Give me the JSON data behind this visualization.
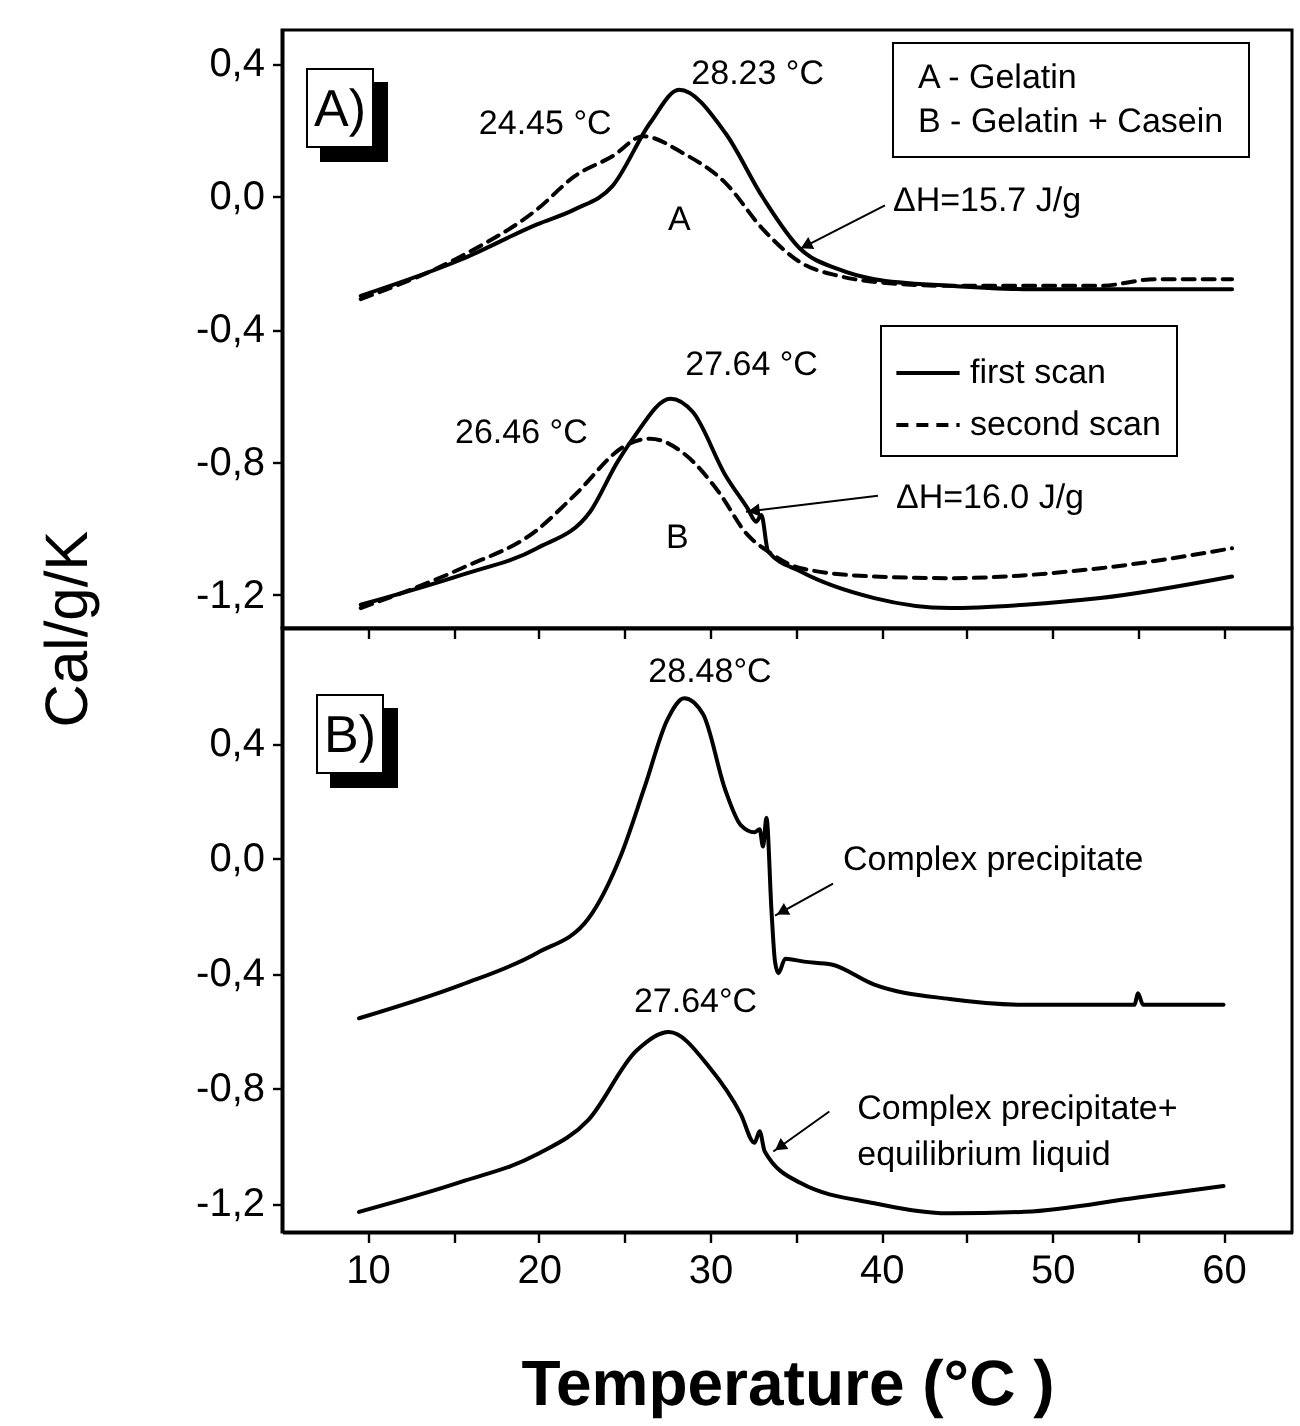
{
  "chart_data": [
    {
      "type": "line",
      "xlim": [
        5,
        64
      ],
      "ylim": [
        -1.3,
        0.5
      ],
      "tick_labels": "y",
      "legend": "right",
      "ylabel": "Cal/g/K",
      "xticks": [
        10,
        {
          "value": 15,
          "label": null
        },
        20,
        {
          "value": 25,
          "label": null
        },
        30,
        {
          "value": 35,
          "label": null
        },
        40,
        {
          "value": 45,
          "label": null
        },
        50,
        {
          "value": 55,
          "label": null
        },
        60
      ],
      "yticks": [
        {
          "value": 0.4,
          "label": "0,4"
        },
        {
          "value": 0,
          "label": "0,0"
        },
        {
          "value": -0.4,
          "label": "-0,4"
        },
        {
          "value": -0.8,
          "label": "-0,8"
        },
        {
          "value": -1.2,
          "label": "-1,2"
        }
      ],
      "series": [
        {
          "name": "first scan",
          "color": "#000000",
          "line_style": "solid",
          "x": [
            9.6,
            15.5,
            19.9,
            22.1,
            24.3,
            26.5,
            28.2,
            30.9,
            33.1,
            35.3,
            37.5,
            39.6,
            44.0,
            48.4,
            52.8,
            60.5
          ],
          "values": [
            -0.3,
            -0.19,
            -0.085,
            -0.04,
            0.03,
            0.22,
            0.32,
            0.19,
            -0.005,
            -0.16,
            -0.22,
            -0.25,
            -0.27,
            -0.28,
            -0.28,
            -0.28
          ]
        },
        {
          "name": "second scan",
          "color": "#000000",
          "line_style": "dashed",
          "x": [
            9.6,
            15.5,
            19.9,
            22.1,
            24.3,
            26.1,
            28.4,
            30.9,
            33.1,
            35.3,
            37.5,
            40.0,
            44.0,
            52.8,
            56.0,
            60.5
          ],
          "values": [
            -0.31,
            -0.18,
            -0.04,
            0.06,
            0.12,
            0.18,
            0.13,
            0.04,
            -0.1,
            -0.2,
            -0.24,
            -0.26,
            -0.27,
            -0.27,
            -0.25,
            -0.25
          ]
        },
        {
          "color": "#000000",
          "line_style": "solid",
          "x": [
            9.6,
            15.5,
            19.9,
            23.0,
            24.6,
            25.5,
            27.7,
            29.0,
            30.9,
            32.2,
            32.7,
            33.0,
            33.4,
            35.3,
            39.6,
            44.0,
            48.4,
            52.8,
            60.5
          ],
          "values": [
            -1.23,
            -1.14,
            -1.06,
            -0.95,
            -0.8,
            -0.73,
            -0.61,
            -0.65,
            -0.84,
            -0.94,
            -0.98,
            -0.96,
            -1.07,
            -1.13,
            -1.21,
            -1.24,
            -1.23,
            -1.21,
            -1.145
          ]
        },
        {
          "color": "#000000",
          "line_style": "dashed",
          "x": [
            9.6,
            15.5,
            19.9,
            22.1,
            25.1,
            26.5,
            28.6,
            30.5,
            32.2,
            33.4,
            35.3,
            39.6,
            44.0,
            52.8,
            60.5
          ],
          "values": [
            -1.24,
            -1.12,
            -1.005,
            -0.9,
            -0.75,
            -0.73,
            -0.78,
            -0.89,
            -1.02,
            -1.07,
            -1.12,
            -1.145,
            -1.15,
            -1.12,
            -1.06
          ]
        }
      ],
      "annotations": [
        {
          "text": "28.23 °C",
          "x": 28.23,
          "y": 0.32
        },
        {
          "text": "24.45 °C",
          "x": 26.1,
          "y": 0.18
        },
        {
          "text": "ΔH=15.7 J/g",
          "x": 35.2,
          "y": -0.16
        },
        {
          "text": "27.64 °C",
          "x": 27.64,
          "y": -0.61
        },
        {
          "text": "26.46 °C",
          "x": 26.46,
          "y": -0.73
        },
        {
          "text": "ΔH=16.0 J/g",
          "x": 32.1,
          "y": -0.95
        },
        "A)",
        "A - Gelatin",
        "B - Gelatin + Casein",
        "A",
        "B"
      ]
    },
    {
      "type": "line",
      "xlim": [
        5,
        64
      ],
      "ylim": [
        -1.3,
        0.8
      ],
      "xlabel": "Temperature (°C )",
      "xticks": [
        10,
        {
          "value": 15,
          "label": null
        },
        20,
        {
          "value": 25,
          "label": null
        },
        30,
        {
          "value": 35,
          "label": null
        },
        40,
        {
          "value": 45,
          "label": null
        },
        50,
        {
          "value": 55,
          "label": null
        },
        60
      ],
      "yticks": [
        {
          "value": 0.4,
          "label": "0,4"
        },
        {
          "value": 0,
          "label": "0,0"
        },
        {
          "value": -0.4,
          "label": "-0,4"
        },
        {
          "value": -0.8,
          "label": "-0,8"
        },
        {
          "value": -1.2,
          "label": "-1,2"
        }
      ],
      "series": [
        {
          "color": "#000000",
          "line_style": "solid",
          "x": [
            9.5,
            15.5,
            19.9,
            22.9,
            24.8,
            26.2,
            27.5,
            28.5,
            29.6,
            30.9,
            31.8,
            32.6,
            32.9,
            33.1,
            33.3,
            33.6,
            33.8,
            34.0,
            34.4,
            35.5,
            37.1,
            39.6,
            44.0,
            48.4,
            54.8,
            55.0,
            55.3,
            60.0
          ],
          "values": [
            -0.557,
            -0.44,
            -0.33,
            -0.21,
            0.01,
            0.25,
            0.48,
            0.556,
            0.5,
            0.236,
            0.115,
            0.09,
            0.1,
            0.04,
            0.14,
            -0.19,
            -0.36,
            -0.4,
            -0.35,
            -0.36,
            -0.37,
            -0.44,
            -0.49,
            -0.51,
            -0.51,
            -0.47,
            -0.51,
            -0.51
          ]
        },
        {
          "color": "#000000",
          "line_style": "solid",
          "x": [
            9.5,
            15.5,
            19.9,
            22.9,
            25.7,
            27.6,
            30.0,
            31.8,
            32.6,
            32.9,
            33.2,
            35.3,
            39.6,
            44.0,
            48.4,
            55.0,
            60.0
          ],
          "values": [
            -1.23,
            -1.125,
            -1.03,
            -0.91,
            -0.67,
            -0.605,
            -0.73,
            -0.89,
            -0.99,
            -0.95,
            -1.02,
            -1.13,
            -1.2,
            -1.235,
            -1.23,
            -1.18,
            -1.14
          ]
        }
      ],
      "annotations": [
        {
          "text": "28.48°C",
          "x": 28.48,
          "y": 0.556
        },
        {
          "text": "Complex precipitate",
          "x": 33.8,
          "y": -0.2
        },
        {
          "text": "27.64°C",
          "x": 27.64,
          "y": -0.605
        },
        {
          "text": "Complex precipitate+\nequilibrium liquid",
          "x": 33.7,
          "y": -1.02
        },
        "B)"
      ]
    }
  ]
}
